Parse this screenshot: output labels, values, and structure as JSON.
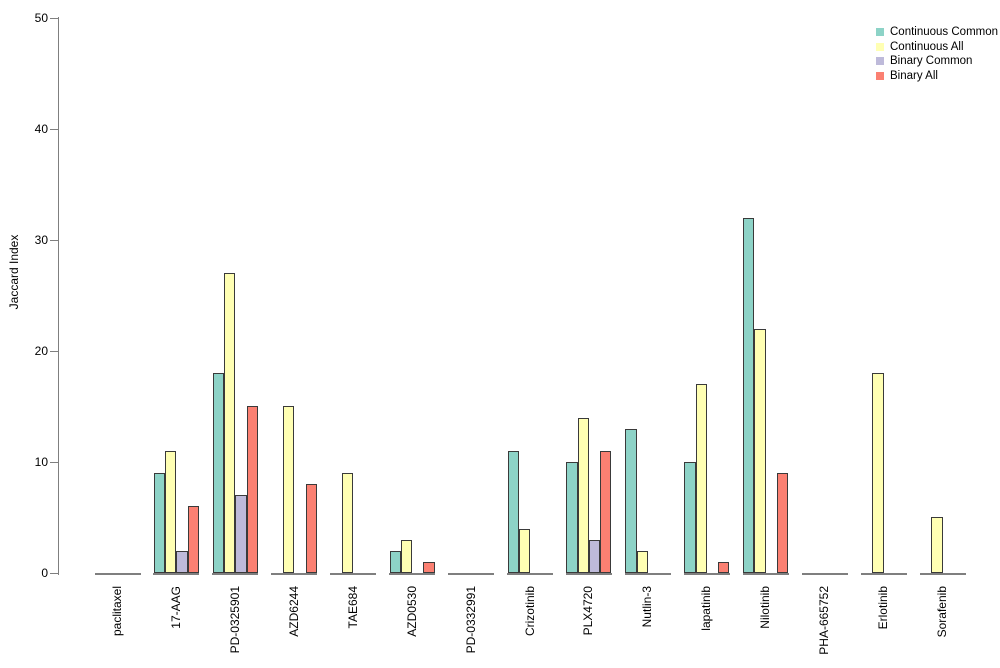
{
  "chart_data": {
    "type": "bar",
    "title": "",
    "xlabel": "",
    "ylabel": "Jaccard Index",
    "ylim": [
      0,
      50
    ],
    "yticks": [
      0,
      10,
      20,
      30,
      40,
      50
    ],
    "grid": false,
    "legend_position": "top-right",
    "categories": [
      "paclitaxel",
      "17-AAG",
      "PD-0325901",
      "AZD6244",
      "TAE684",
      "AZD0530",
      "PD-0332991",
      "Crizotinib",
      "PLX4720",
      "Nutlin-3",
      "lapatinib",
      "Nilotinib",
      "PHA-665752",
      "Erlotinib",
      "Sorafenib"
    ],
    "series": [
      {
        "name": "Continuous Common",
        "color": "#8DD3C7",
        "values": [
          0,
          9,
          18,
          0,
          0,
          2,
          0,
          11,
          10,
          13,
          10,
          32,
          0,
          0,
          0
        ]
      },
      {
        "name": "Continuous All",
        "color": "#FFFFB3",
        "values": [
          0,
          11,
          27,
          15,
          9,
          3,
          0,
          4,
          14,
          2,
          17,
          22,
          0,
          18,
          5
        ]
      },
      {
        "name": "Binary Common",
        "color": "#BEBADA",
        "values": [
          0,
          2,
          7,
          0,
          0,
          0,
          0,
          0,
          3,
          0,
          0,
          0,
          0,
          0,
          0
        ]
      },
      {
        "name": "Binary All",
        "color": "#FB8072",
        "values": [
          0,
          6,
          15,
          8,
          0,
          1,
          0,
          0,
          11,
          0,
          1,
          9,
          0,
          0,
          0
        ]
      }
    ]
  },
  "colors": {
    "axis": "#7f7f7f",
    "baseline": "#7f7f7f",
    "bar_border": "#3a3a3a",
    "text": "#000000",
    "background": "#ffffff"
  }
}
